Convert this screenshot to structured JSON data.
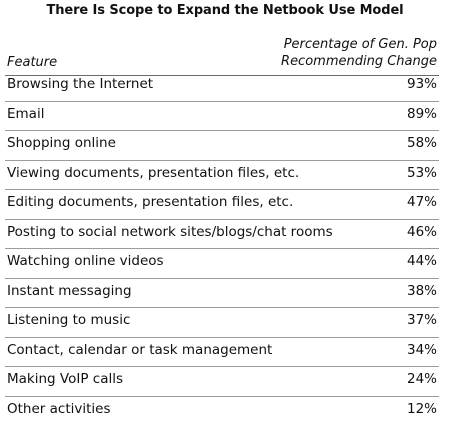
{
  "chart_data": {
    "type": "table",
    "title": "There Is Scope to Expand the Netbook Use Model",
    "columns": [
      "Feature",
      "Percentage of Gen. Pop Recommending Change"
    ],
    "column_header_lines": {
      "feature": "Feature",
      "pct_line1": "Percentage of Gen. Pop",
      "pct_line2": "Recommending Change"
    },
    "rows": [
      {
        "feature": "Browsing the Internet",
        "value": 93,
        "label": "93%"
      },
      {
        "feature": "Email",
        "value": 89,
        "label": "89%"
      },
      {
        "feature": "Shopping online",
        "value": 58,
        "label": "58%"
      },
      {
        "feature": "Viewing documents, presentation files, etc.",
        "value": 53,
        "label": "53%"
      },
      {
        "feature": "Editing documents, presentation files, etc.",
        "value": 47,
        "label": "47%"
      },
      {
        "feature": "Posting to social network sites/blogs/chat rooms",
        "value": 46,
        "label": "46%"
      },
      {
        "feature": "Watching online videos",
        "value": 44,
        "label": "44%"
      },
      {
        "feature": "Instant messaging",
        "value": 38,
        "label": "38%"
      },
      {
        "feature": "Listening to music",
        "value": 37,
        "label": "37%"
      },
      {
        "feature": "Contact, calendar or task management",
        "value": 34,
        "label": "34%"
      },
      {
        "feature": "Making VoIP calls",
        "value": 24,
        "label": "24%"
      },
      {
        "feature": "Other activities",
        "value": 12,
        "label": "12%"
      }
    ]
  }
}
